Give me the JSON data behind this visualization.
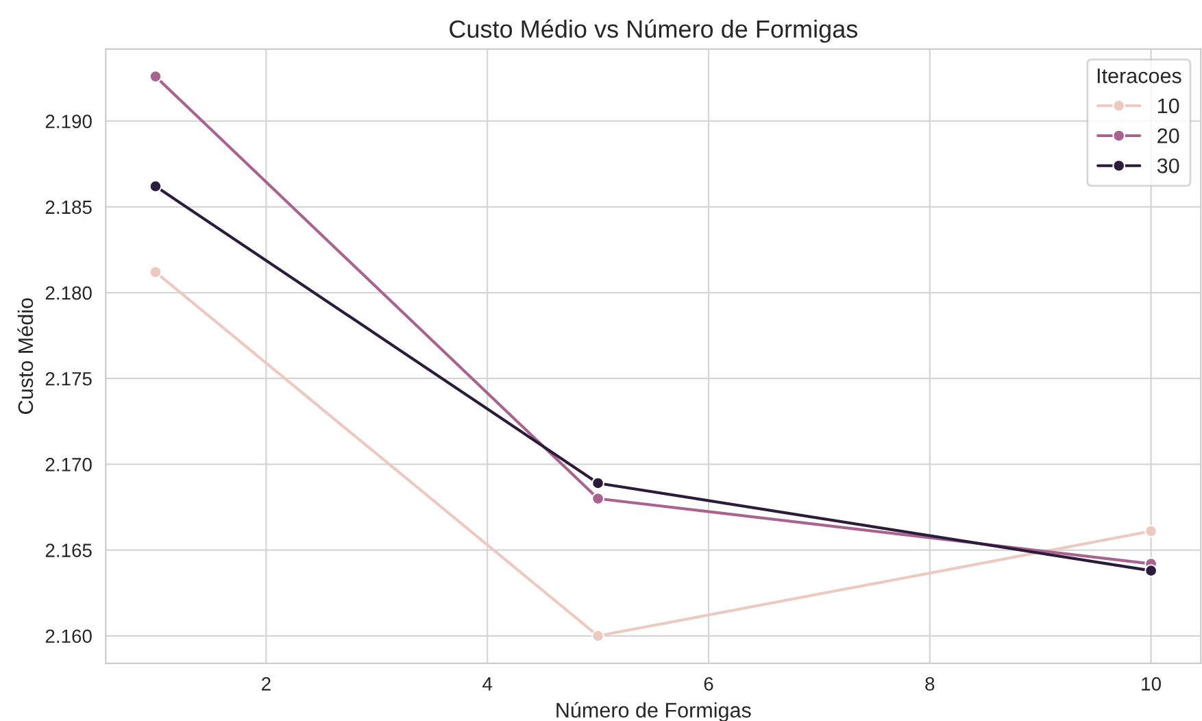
{
  "chart_data": {
    "type": "line",
    "title": "Custo Médio vs Número de Formigas",
    "xlabel": "Número de Formigas",
    "ylabel": "Custo Médio",
    "legend_title": "Iteracoes",
    "x": [
      1,
      5,
      10
    ],
    "series": [
      {
        "name": "10",
        "color": "#ecc9c1",
        "values": [
          2.1812,
          2.16,
          2.1661
        ]
      },
      {
        "name": "20",
        "color": "#a8638f",
        "values": [
          2.1926,
          2.168,
          2.1642
        ]
      },
      {
        "name": "30",
        "color": "#2b1c3c",
        "values": [
          2.1862,
          2.1689,
          2.1638
        ]
      }
    ],
    "xlim": [
      0.55,
      10.45
    ],
    "xticks": [
      2,
      4,
      6,
      8,
      10
    ],
    "ylim": [
      2.1584,
      2.1942
    ],
    "yticks": [
      {
        "value": 2.16,
        "label": "2.160"
      },
      {
        "value": 2.165,
        "label": "2.165"
      },
      {
        "value": 2.17,
        "label": "2.170"
      },
      {
        "value": 2.175,
        "label": "2.175"
      },
      {
        "value": 2.18,
        "label": "2.180"
      },
      {
        "value": 2.185,
        "label": "2.185"
      },
      {
        "value": 2.19,
        "label": "2.190"
      }
    ],
    "grid": true,
    "legend": "top right",
    "marker": "circle",
    "line_style": "solid"
  }
}
